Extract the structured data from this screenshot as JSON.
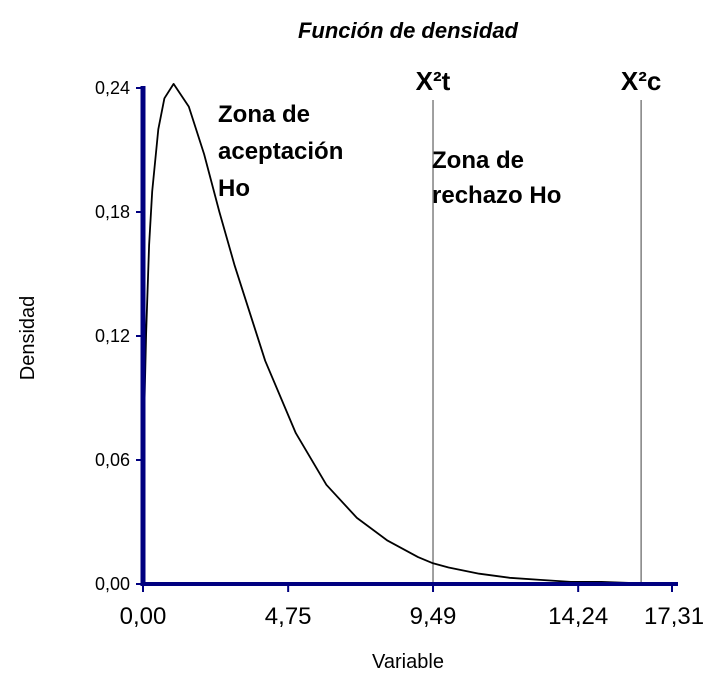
{
  "chart_data": {
    "type": "line",
    "title": "Función de densidad",
    "xlabel": "Variable",
    "ylabel": "Densidad",
    "x_ticks": [
      "0,00",
      "4,75",
      "9,49",
      "14,24",
      "17,31"
    ],
    "x_tick_values": [
      0,
      4.75,
      9.49,
      14.24,
      17.31
    ],
    "y_ticks": [
      "0,00",
      "0,06",
      "0,12",
      "0,18",
      "0,24"
    ],
    "y_tick_values": [
      0,
      0.06,
      0.12,
      0.18,
      0.24
    ],
    "xlim": [
      0,
      17.31
    ],
    "ylim": [
      0,
      0.24
    ],
    "grid": false,
    "curve": {
      "distribution": "chi-square",
      "df": 3,
      "x": [
        0.05,
        0.1,
        0.2,
        0.3,
        0.5,
        0.7,
        1.0,
        1.5,
        2.0,
        2.5,
        3.0,
        4.0,
        5.0,
        6.0,
        7.0,
        8.0,
        9.0,
        9.49,
        10.0,
        11.0,
        12.0,
        13.0,
        14.0,
        15.0,
        16.0,
        17.0
      ],
      "y": [
        0.088,
        0.121,
        0.164,
        0.19,
        0.22,
        0.235,
        0.242,
        0.231,
        0.208,
        0.18,
        0.154,
        0.108,
        0.073,
        0.048,
        0.032,
        0.021,
        0.013,
        0.01,
        0.008,
        0.005,
        0.003,
        0.002,
        0.001,
        0.001,
        0.0005,
        0.0003
      ]
    },
    "critical_lines": [
      {
        "label": "X²t",
        "x": 9.49
      },
      {
        "label": "X²c",
        "x": 16.3
      }
    ],
    "annotations": [
      {
        "lines": [
          "Zona de",
          "aceptación",
          "Ho"
        ]
      },
      {
        "lines": [
          "Zona de",
          "rechazo Ho"
        ]
      }
    ],
    "colors": {
      "axis": "#000080",
      "curve": "#000000",
      "critical_line": "#808080"
    }
  }
}
